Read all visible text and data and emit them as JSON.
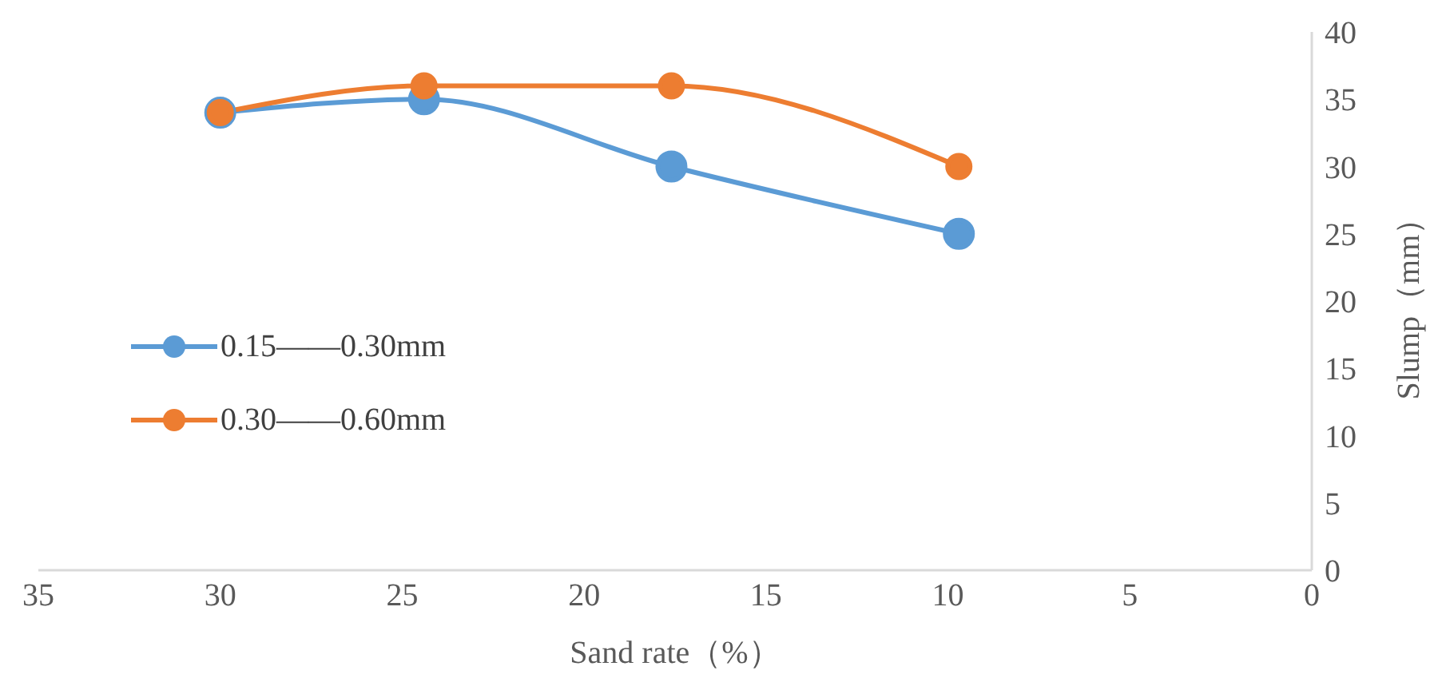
{
  "chart_data": {
    "type": "line",
    "xlabel": "Sand rate（%）",
    "ylabel": "Slump（mm）",
    "x": [
      30,
      24.4,
      17.6,
      9.7
    ],
    "series": [
      {
        "name": "0.15——0.30mm",
        "color": "#5b9bd5",
        "values": [
          34,
          35,
          30,
          25
        ]
      },
      {
        "name": "0.30——0.60mm",
        "color": "#ed7d31",
        "values": [
          34,
          36,
          36,
          30
        ]
      }
    ],
    "xlim": [
      35,
      0
    ],
    "xticks": [
      35,
      30,
      25,
      20,
      15,
      10,
      5,
      0
    ],
    "ylim": [
      0,
      40
    ],
    "yticks": [
      0,
      5,
      10,
      15,
      20,
      25,
      30,
      35,
      40
    ],
    "grid": false,
    "legend": "left",
    "marker": "circle",
    "line_style": "solid"
  }
}
